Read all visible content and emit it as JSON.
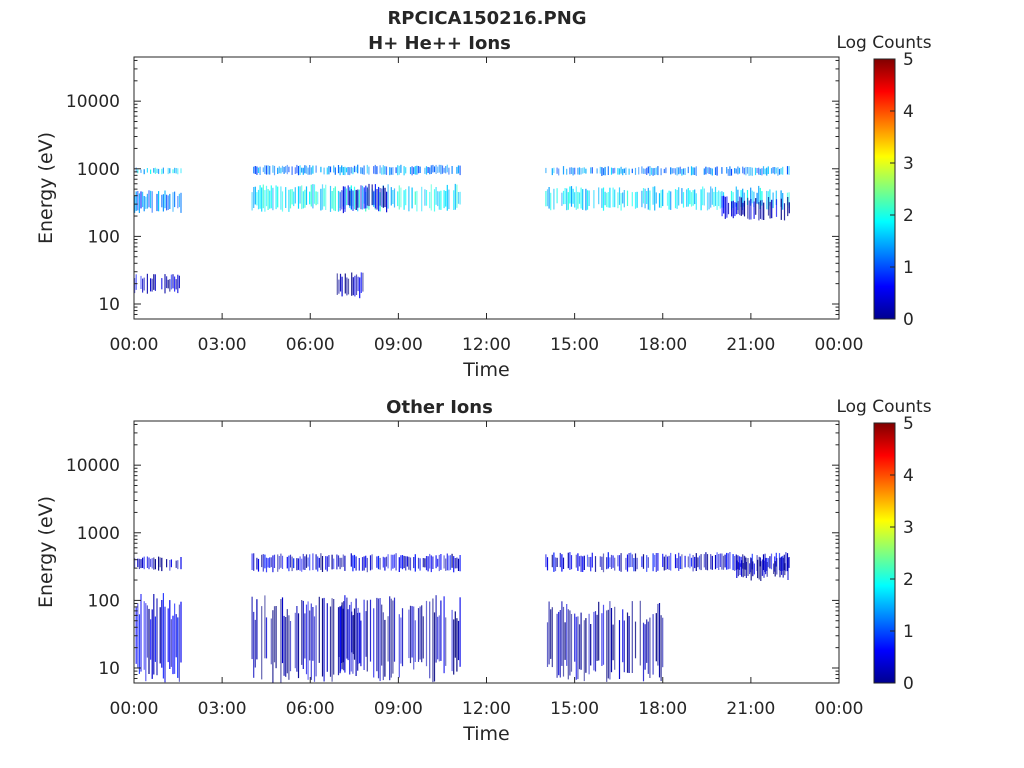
{
  "figure": {
    "title_line1": "RPCICA150216.PNG",
    "colors": {
      "background": "#ffffff",
      "axis": "#262626"
    }
  },
  "chart_data": [
    {
      "type": "heatmap",
      "title": "H+ He++ Ions",
      "xlabel": "Time",
      "ylabel": "Energy (eV)",
      "x_tick_labels": [
        "00:00",
        "03:00",
        "06:00",
        "09:00",
        "12:00",
        "15:00",
        "18:00",
        "21:00",
        "00:00"
      ],
      "x_range_hours": [
        0,
        24
      ],
      "yscale": "log",
      "ylim": [
        6,
        45000
      ],
      "y_ticks": [
        10,
        100,
        1000,
        10000
      ],
      "y_tick_labels": [
        "10",
        "100",
        "1000",
        "10000"
      ],
      "colorbar": {
        "label": "Log Counts",
        "range": [
          0,
          5
        ],
        "tick_labels": [
          "0",
          "1",
          "2",
          "3",
          "4",
          "5"
        ],
        "colormap": "jet"
      },
      "data_blocks": [
        {
          "t_start": 0.0,
          "t_end": 1.6,
          "e_low": 820,
          "e_high": 1050,
          "log_counts": 1.6
        },
        {
          "t_start": 0.0,
          "t_end": 1.6,
          "e_low": 220,
          "e_high": 480,
          "log_counts": 1.2
        },
        {
          "t_start": 0.0,
          "t_end": 1.6,
          "e_low": 14,
          "e_high": 28,
          "log_counts": 0.4
        },
        {
          "t_start": 4.0,
          "t_end": 11.1,
          "e_low": 800,
          "e_high": 1150,
          "log_counts": 1.3
        },
        {
          "t_start": 4.0,
          "t_end": 11.1,
          "e_low": 230,
          "e_high": 600,
          "log_counts": 1.8
        },
        {
          "t_start": 7.0,
          "t_end": 8.6,
          "e_low": 220,
          "e_high": 600,
          "log_counts": 0.4
        },
        {
          "t_start": 6.9,
          "t_end": 7.8,
          "e_low": 12,
          "e_high": 30,
          "log_counts": 0.3
        },
        {
          "t_start": 14.0,
          "t_end": 22.3,
          "e_low": 780,
          "e_high": 1100,
          "log_counts": 1.3
        },
        {
          "t_start": 14.0,
          "t_end": 22.3,
          "e_low": 240,
          "e_high": 560,
          "log_counts": 1.7
        },
        {
          "t_start": 20.0,
          "t_end": 22.3,
          "e_low": 170,
          "e_high": 400,
          "log_counts": 0.3
        }
      ]
    },
    {
      "type": "heatmap",
      "title": "Other Ions",
      "xlabel": "Time",
      "ylabel": "Energy (eV)",
      "x_tick_labels": [
        "00:00",
        "03:00",
        "06:00",
        "09:00",
        "12:00",
        "15:00",
        "18:00",
        "21:00",
        "00:00"
      ],
      "x_range_hours": [
        0,
        24
      ],
      "yscale": "log",
      "ylim": [
        6,
        45000
      ],
      "y_ticks": [
        10,
        100,
        1000,
        10000
      ],
      "y_tick_labels": [
        "10",
        "100",
        "1000",
        "10000"
      ],
      "colorbar": {
        "label": "Log Counts",
        "range": [
          0,
          5
        ],
        "tick_labels": [
          "0",
          "1",
          "2",
          "3",
          "4",
          "5"
        ],
        "colormap": "jet"
      },
      "data_blocks": [
        {
          "t_start": 0.0,
          "t_end": 1.6,
          "e_low": 6,
          "e_high": 130,
          "log_counts": 0.4
        },
        {
          "t_start": 0.0,
          "t_end": 1.6,
          "e_low": 270,
          "e_high": 450,
          "log_counts": 0.3
        },
        {
          "t_start": 4.0,
          "t_end": 11.1,
          "e_low": 260,
          "e_high": 500,
          "log_counts": 0.4
        },
        {
          "t_start": 4.0,
          "t_end": 11.1,
          "e_low": 6,
          "e_high": 120,
          "log_counts": 0.15
        },
        {
          "t_start": 6.9,
          "t_end": 7.9,
          "e_low": 8,
          "e_high": 110,
          "log_counts": 0.3
        },
        {
          "t_start": 14.0,
          "t_end": 22.3,
          "e_low": 260,
          "e_high": 520,
          "log_counts": 0.4
        },
        {
          "t_start": 14.0,
          "t_end": 18.0,
          "e_low": 6,
          "e_high": 100,
          "log_counts": 0.15
        },
        {
          "t_start": 20.5,
          "t_end": 22.3,
          "e_low": 190,
          "e_high": 450,
          "log_counts": 0.2
        }
      ]
    }
  ]
}
